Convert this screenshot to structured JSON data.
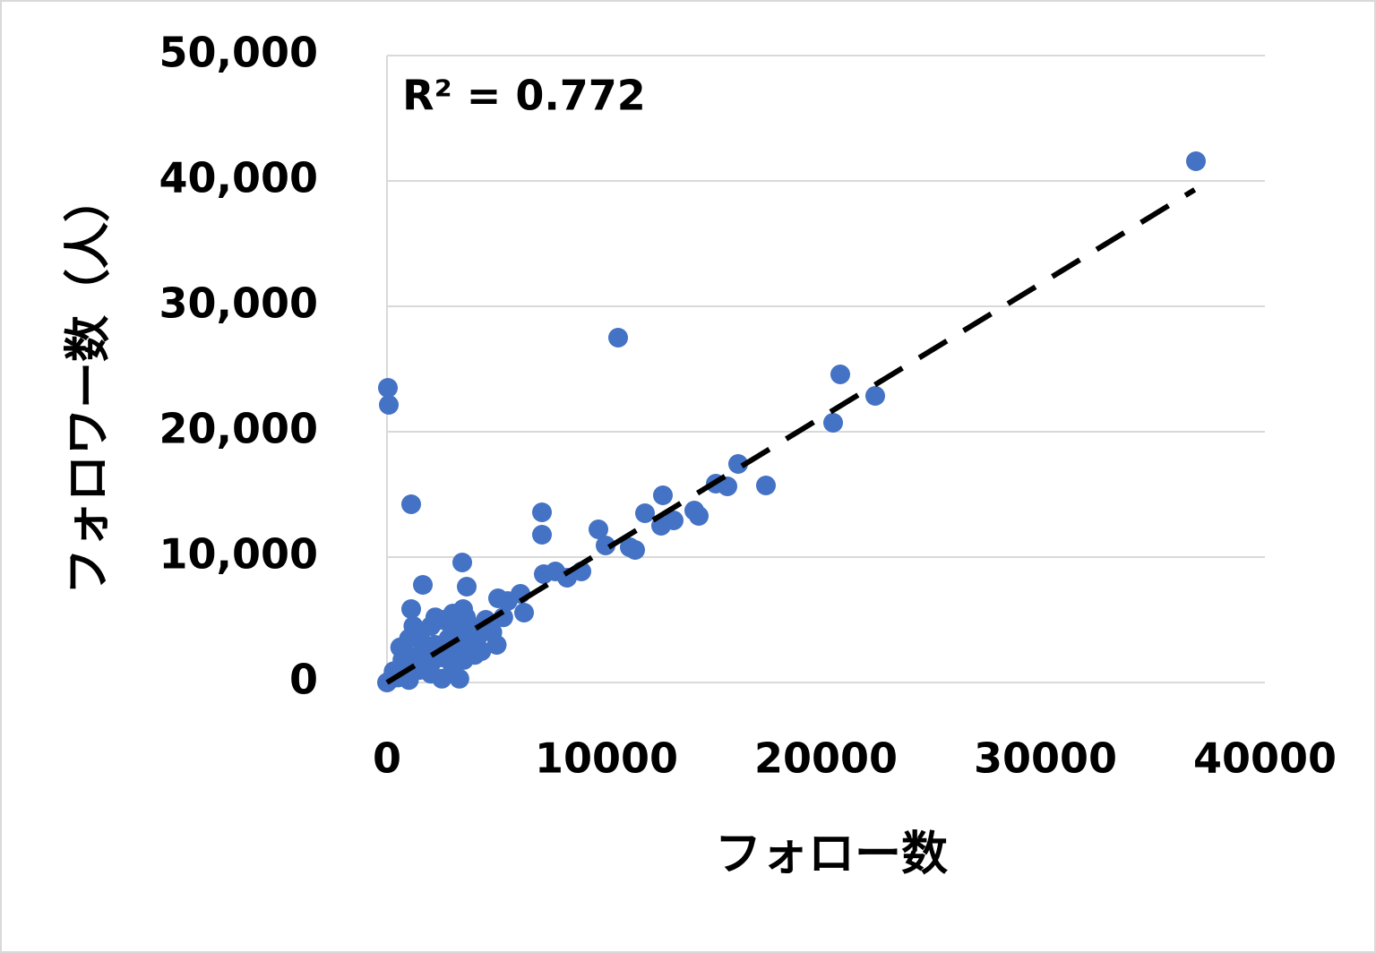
{
  "chart_data": {
    "type": "scatter",
    "xlabel": "フォロー数",
    "ylabel": "フォロワー数（人）",
    "annotation": "R² = 0.772",
    "color": "#4472c4",
    "grid": true,
    "xlim": [
      0,
      40000
    ],
    "xticks": [
      0,
      10000,
      20000,
      30000,
      40000
    ],
    "ylim": [
      0,
      50000
    ],
    "yticks": [
      0,
      {
        "value": 10000,
        "label": "10,000"
      },
      {
        "value": 20000,
        "label": "20,000"
      },
      {
        "value": 30000,
        "label": "30,000"
      },
      {
        "value": 40000,
        "label": "40,000"
      },
      {
        "value": 50000,
        "label": "50,000"
      }
    ],
    "trendline": {
      "x": [
        0,
        36800
      ],
      "y": [
        0,
        39300
      ]
    },
    "x": [
      36857,
      10531,
      20653,
      22245,
      20327,
      41,
      82,
      1102,
      16000,
      17265,
      15510,
      14980,
      12571,
      14000,
      14204,
      13061,
      12490,
      11755,
      7061,
      7061,
      9633,
      9959,
      11061,
      11306,
      7673,
      7143,
      8857,
      8204,
      3429,
      3633,
      1633,
      6082,
      6245,
      5061,
      1102,
      3469,
      0,
      200,
      500,
      800,
      1000,
      1200,
      1500,
      1800,
      2000,
      2200,
      2500,
      2800,
      3000,
      3200,
      3500,
      3800,
      4000,
      4300,
      4500,
      4800,
      5000,
      5300,
      5500,
      2000,
      1500,
      2500,
      3000,
      1000,
      600,
      1000,
      2000,
      3000,
      2500,
      3500,
      4000,
      1200,
      2800,
      4200,
      700,
      300,
      1600,
      3300,
      2200,
      3600
    ],
    "y": [
      41571,
      27500,
      24571,
      22857,
      20714,
      23500,
      22143,
      14214,
      17429,
      15714,
      15643,
      15857,
      14929,
      13714,
      13286,
      12929,
      12500,
      13500,
      13571,
      11786,
      12214,
      10929,
      10786,
      10571,
      8857,
      8643,
      8857,
      8357,
      9571,
      7643,
      7786,
      7071,
      5571,
      6714,
      5857,
      5857,
      0,
      300,
      400,
      1200,
      600,
      2000,
      1000,
      2500,
      1500,
      3000,
      2000,
      3500,
      2500,
      4000,
      3000,
      4500,
      3500,
      2500,
      5000,
      4000,
      3000,
      5200,
      6500,
      4500,
      4000,
      5000,
      5500,
      3500,
      2800,
      200,
      700,
      1200,
      300,
      1800,
      2200,
      4500,
      4800,
      3800,
      1800,
      900,
      3200,
      300,
      5200,
      5200
    ]
  }
}
